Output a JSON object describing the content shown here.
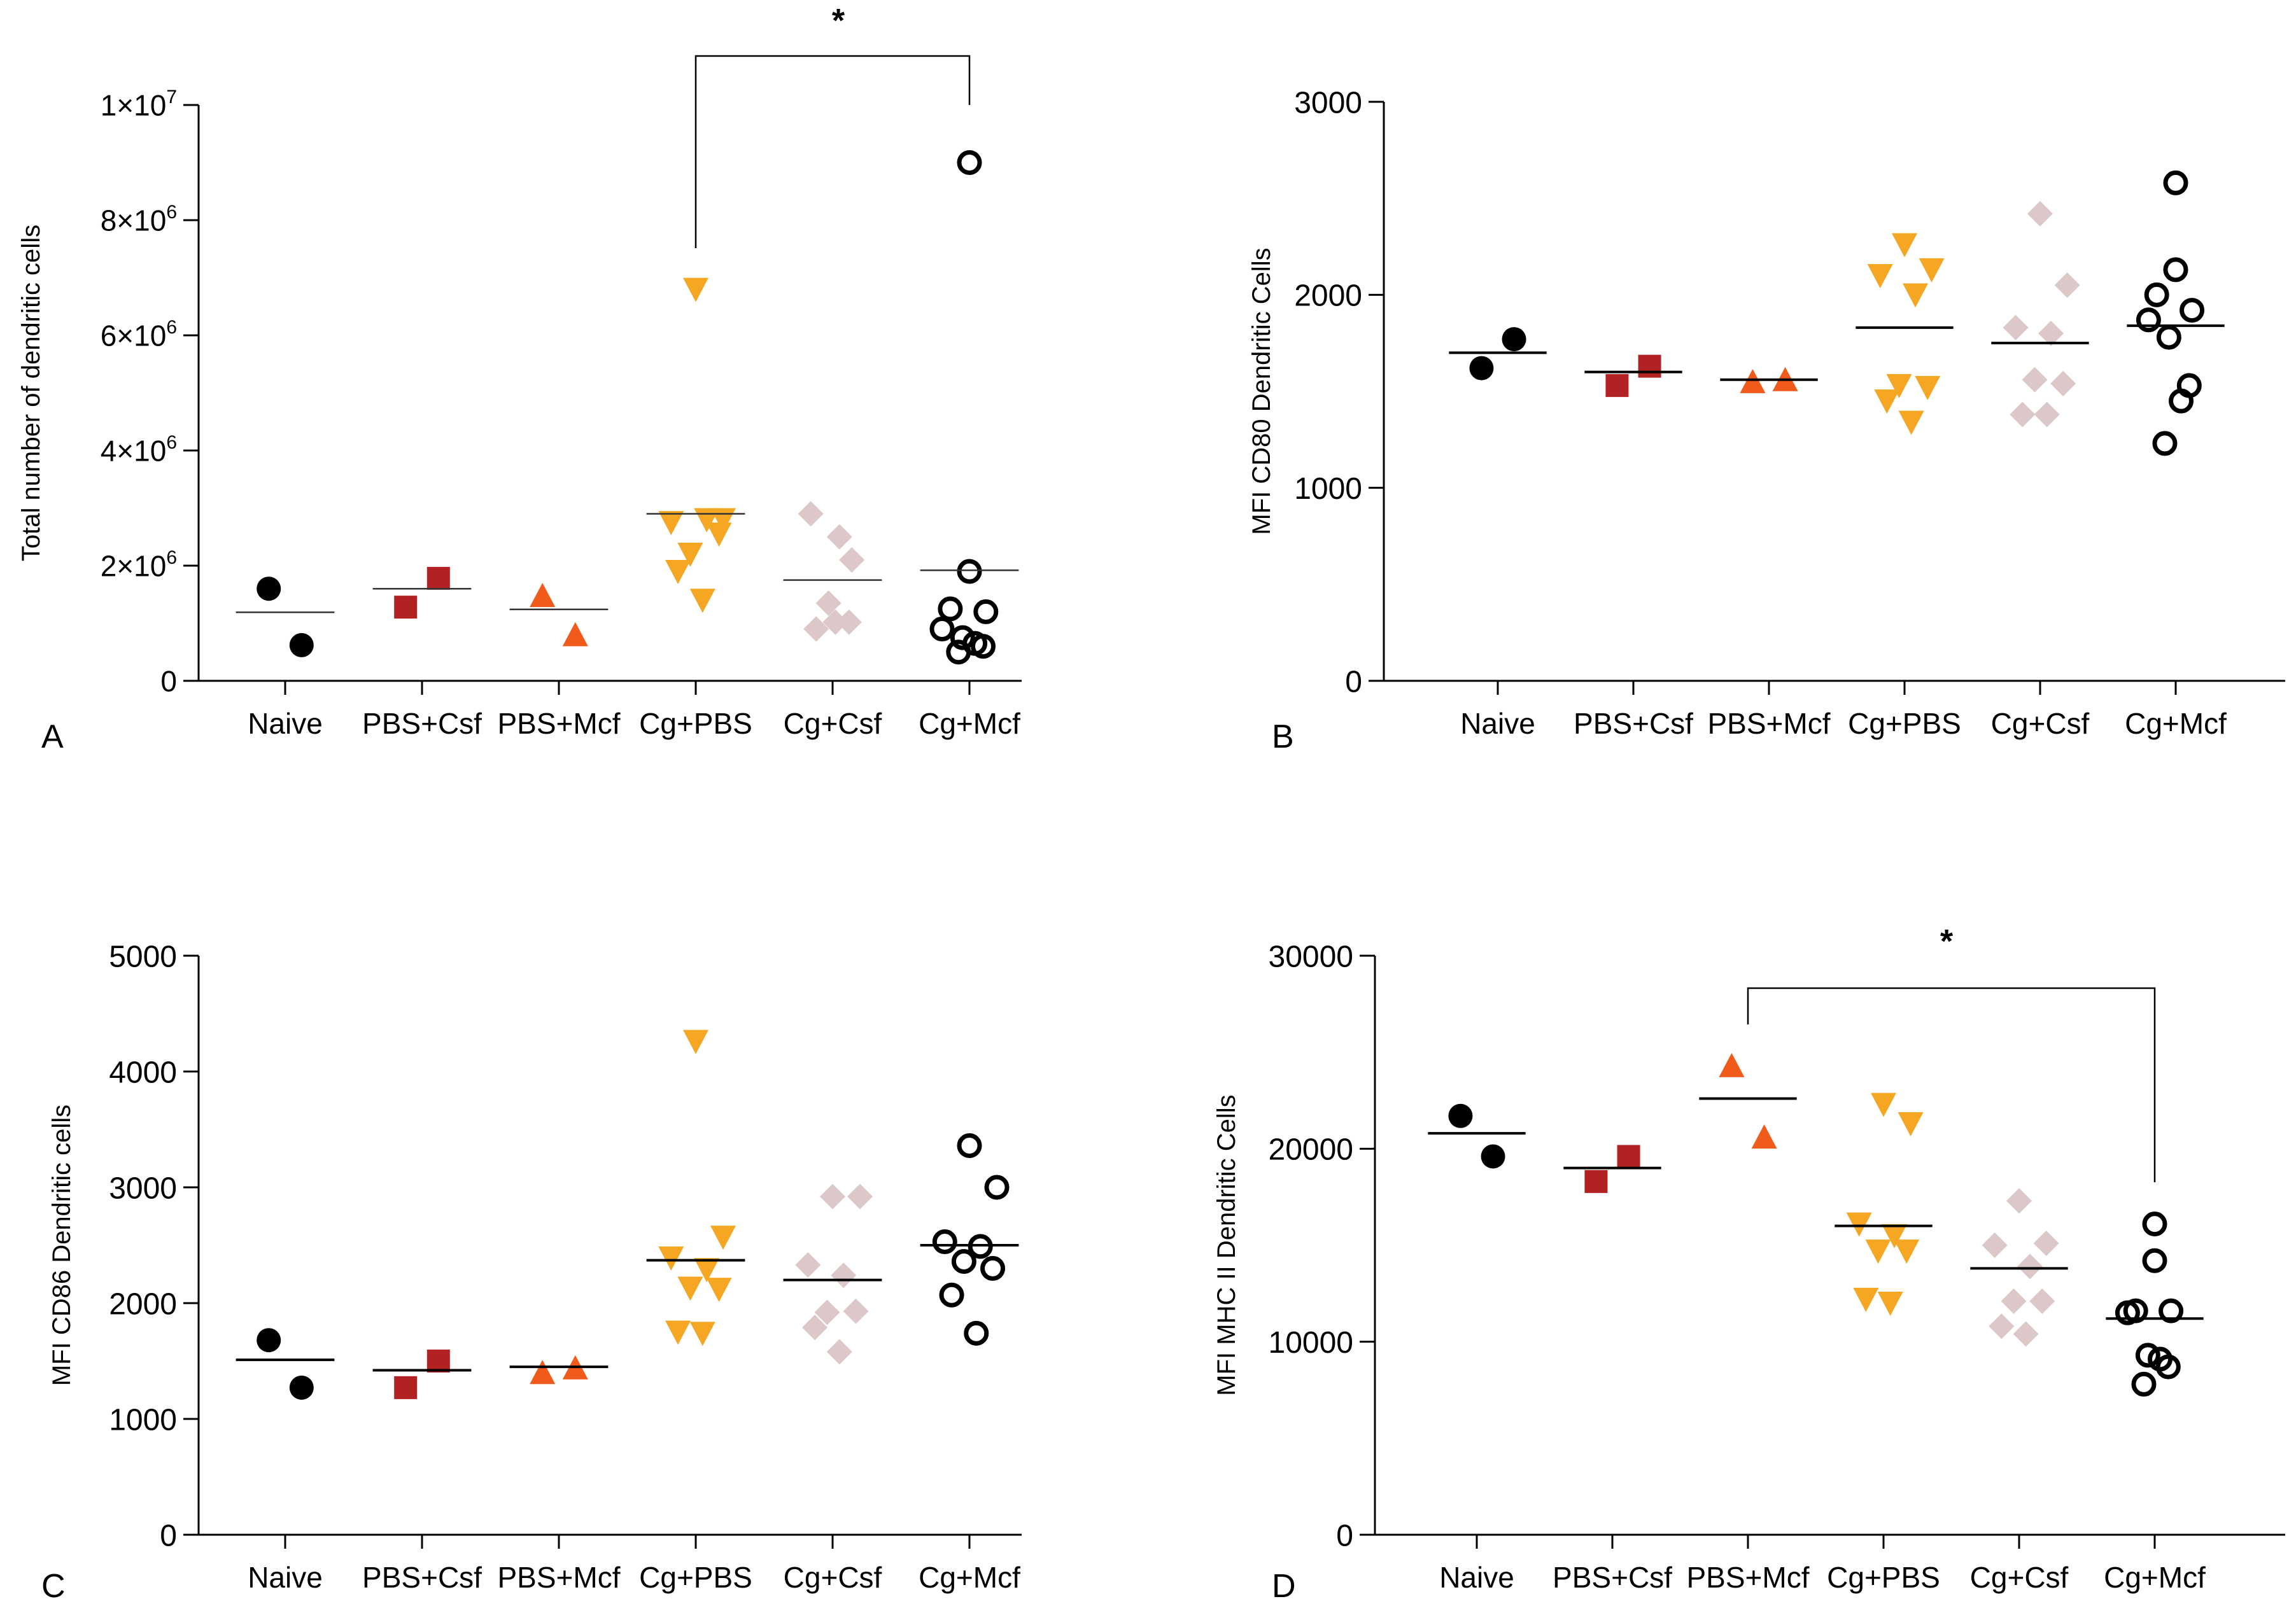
{
  "groups": [
    "Naive",
    "PBS+Csf",
    "PBS+Mcf",
    "Cg+PBS",
    "Cg+Csf",
    "Cg+Mcf"
  ],
  "colors": {
    "Naive": "#000000",
    "PBS+Csf": "#b22222",
    "PBS+Mcf": "#f05a1a",
    "Cg+PBS": "#f5a623",
    "Cg+Csf": "#dcc8c8",
    "Cg+Mcf": "#000000"
  },
  "markers": {
    "Naive": "circle-filled",
    "PBS+Csf": "square",
    "PBS+Mcf": "triangle-up",
    "Cg+PBS": "triangle-down",
    "Cg+Csf": "diamond",
    "Cg+Mcf": "circle-open"
  },
  "chart_data": [
    {
      "panel": "A",
      "type": "scatter",
      "ylabel": "Total number of dendritic cells",
      "ylim": [
        0,
        10000000
      ],
      "yticks": [
        0,
        2000000,
        4000000,
        6000000,
        8000000,
        10000000
      ],
      "yticklabels": [
        {
          "m": "0",
          "e": ""
        },
        {
          "m": "2×10",
          "e": "6"
        },
        {
          "m": "4×10",
          "e": "6"
        },
        {
          "m": "6×10",
          "e": "6"
        },
        {
          "m": "8×10",
          "e": "6"
        },
        {
          "m": "1×10",
          "e": "7"
        }
      ],
      "series": [
        {
          "group": "Naive",
          "values": [
            1600000,
            620000
          ],
          "mean": 1190000
        },
        {
          "group": "PBS+Csf",
          "values": [
            1280000,
            1780000
          ],
          "mean": 1600000
        },
        {
          "group": "PBS+Mcf",
          "values": [
            1480000,
            800000
          ],
          "mean": 1240000
        },
        {
          "group": "Cg+PBS",
          "values": [
            6800000,
            2800000,
            2750000,
            2800000,
            2200000,
            2550000,
            1900000,
            1400000
          ],
          "mean": 2900000
        },
        {
          "group": "Cg+Csf",
          "values": [
            2500000,
            2900000,
            2100000,
            1350000,
            1020000,
            900000,
            1020000
          ],
          "mean": 1750000
        },
        {
          "group": "Cg+Mcf",
          "values": [
            9000000,
            1900000,
            1250000,
            1200000,
            900000,
            750000,
            600000,
            650000,
            500000
          ],
          "mean": 1920000
        }
      ],
      "significance": {
        "from": "Cg+PBS",
        "to": "Cg+Mcf",
        "label": "*"
      },
      "panel_label": "A"
    },
    {
      "panel": "B",
      "type": "scatter",
      "ylabel": "MFI CD80 Dendritic Cells",
      "ylim": [
        0,
        3000
      ],
      "yticks": [
        0,
        1000,
        2000,
        3000
      ],
      "yticklabels": [
        {
          "m": "0",
          "e": ""
        },
        {
          "m": "1000",
          "e": ""
        },
        {
          "m": "2000",
          "e": ""
        },
        {
          "m": "3000",
          "e": ""
        }
      ],
      "series": [
        {
          "group": "Naive",
          "values": [
            1620,
            1770
          ],
          "mean": 1700
        },
        {
          "group": "PBS+Csf",
          "values": [
            1530,
            1630
          ],
          "mean": 1600
        },
        {
          "group": "PBS+Mcf",
          "values": [
            1550,
            1560
          ],
          "mean": 1560
        },
        {
          "group": "Cg+PBS",
          "values": [
            2260,
            2130,
            2100,
            2000,
            1530,
            1520,
            1450,
            1340
          ],
          "mean": 1830
        },
        {
          "group": "Cg+Csf",
          "values": [
            2420,
            2050,
            1830,
            1800,
            1560,
            1540,
            1380,
            1380
          ],
          "mean": 1750
        },
        {
          "group": "Cg+Mcf",
          "values": [
            2580,
            2130,
            2000,
            1920,
            1870,
            1780,
            1530,
            1450,
            1230
          ],
          "mean": 1840
        }
      ],
      "panel_label": "B"
    },
    {
      "panel": "C",
      "type": "scatter",
      "ylabel": "MFI CD86 Dendritic cells",
      "ylim": [
        0,
        5000
      ],
      "yticks": [
        0,
        1000,
        2000,
        3000,
        4000,
        5000
      ],
      "yticklabels": [
        {
          "m": "0",
          "e": ""
        },
        {
          "m": "1000",
          "e": ""
        },
        {
          "m": "2000",
          "e": ""
        },
        {
          "m": "3000",
          "e": ""
        },
        {
          "m": "4000",
          "e": ""
        },
        {
          "m": "5000",
          "e": ""
        }
      ],
      "series": [
        {
          "group": "Naive",
          "values": [
            1680,
            1270
          ],
          "mean": 1510
        },
        {
          "group": "PBS+Csf",
          "values": [
            1270,
            1500
          ],
          "mean": 1420
        },
        {
          "group": "PBS+Mcf",
          "values": [
            1400,
            1440
          ],
          "mean": 1450
        },
        {
          "group": "Cg+PBS",
          "values": [
            4260,
            2570,
            2390,
            2290,
            2130,
            2120,
            1750,
            1740
          ],
          "mean": 2370
        },
        {
          "group": "Cg+Csf",
          "values": [
            2920,
            2920,
            2330,
            2240,
            1920,
            1930,
            1790,
            1580
          ],
          "mean": 2200
        },
        {
          "group": "Cg+Mcf",
          "values": [
            3360,
            3000,
            2530,
            2490,
            2360,
            2300,
            2070,
            1740
          ],
          "mean": 2500
        }
      ],
      "panel_label": "C"
    },
    {
      "panel": "D",
      "type": "scatter",
      "ylabel": "MFI MHC  II Dendritic Cells",
      "ylim": [
        0,
        30000
      ],
      "yticks": [
        0,
        10000,
        20000,
        30000
      ],
      "yticklabels": [
        {
          "m": "0",
          "e": ""
        },
        {
          "m": "10000",
          "e": ""
        },
        {
          "m": "20000",
          "e": ""
        },
        {
          "m": "30000",
          "e": ""
        }
      ],
      "series": [
        {
          "group": "Naive",
          "values": [
            21700,
            19600
          ],
          "mean": 20800
        },
        {
          "group": "PBS+Csf",
          "values": [
            18300,
            19600
          ],
          "mean": 19000
        },
        {
          "group": "PBS+Mcf",
          "values": [
            24300,
            20600
          ],
          "mean": 22600
        },
        {
          "group": "Cg+PBS",
          "values": [
            22300,
            21300,
            16100,
            15500,
            14700,
            14700,
            12200,
            12000
          ],
          "mean": 16000
        },
        {
          "group": "Cg+Csf",
          "values": [
            17300,
            15100,
            15000,
            13900,
            12100,
            12100,
            10800,
            10400
          ],
          "mean": 13800
        },
        {
          "group": "Cg+Mcf",
          "values": [
            16100,
            14200,
            11600,
            11600,
            11500,
            9300,
            8700,
            9100,
            7800
          ],
          "mean": 11200
        }
      ],
      "significance": {
        "from": "PBS+Mcf",
        "to": "Cg+Mcf",
        "label": "*"
      },
      "panel_label": "D"
    }
  ]
}
